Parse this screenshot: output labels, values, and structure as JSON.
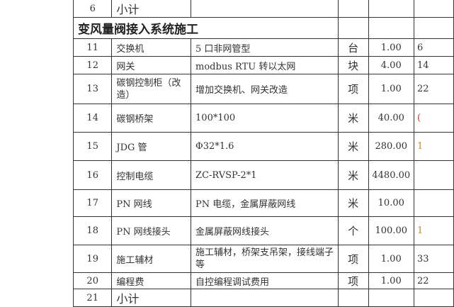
{
  "rows_top": [
    {
      "no": "6",
      "name": "小计"
    }
  ],
  "section": {
    "title": "变风量阀接入系统施工"
  },
  "rows": [
    {
      "no": "11",
      "name": "交换机",
      "spec": "5 口非网管型",
      "unit": "台",
      "qty": "1.00",
      "price": "6",
      "price_color": "#333333"
    },
    {
      "no": "12",
      "name": "网关",
      "spec": "modbus RTU 转以太网",
      "unit": "块",
      "qty": "4.00",
      "price": "14",
      "price_color": "#333333"
    },
    {
      "no": "13",
      "name": "碳钢控制柜（改造）",
      "spec": "增加交换机、网关改造",
      "unit": "项",
      "qty": "1.00",
      "price": "22",
      "price_color": "#333333"
    },
    {
      "no": "14",
      "name": "碳钢桥架",
      "spec": "100*100",
      "unit": "米",
      "qty": "40.00",
      "price": "(",
      "price_color": "#c0392b"
    },
    {
      "no": "15",
      "name": "JDG 管",
      "spec": "Φ32*1.6",
      "unit": "米",
      "qty": "280.00",
      "price": "1",
      "price_color": "#d08a1a"
    },
    {
      "no": "16",
      "name": "控制电缆",
      "spec": "ZC-RVSP-2*1",
      "unit": "米",
      "qty": "4480.00",
      "price": "",
      "price_color": "#333333"
    },
    {
      "no": "17",
      "name": "PN 网线",
      "spec": "PN 电缆，金属屏蔽网线",
      "unit": "米",
      "qty": "10.00",
      "price": "",
      "price_color": "#333333"
    },
    {
      "no": "18",
      "name": "PN 网线接头",
      "spec": "金属屏蔽网线接头",
      "unit": "个",
      "qty": "100.00",
      "price": "1",
      "price_color": "#d08a1a"
    },
    {
      "no": "19",
      "name": "施工辅材",
      "spec": "施工辅材，桥架支吊架，接线端子等",
      "unit": "项",
      "qty": "1.00",
      "price": "33",
      "price_color": "#333333"
    },
    {
      "no": "20",
      "name": "编程费",
      "spec": "自控编程调试费用",
      "unit": "项",
      "qty": "1.00",
      "price": "22",
      "price_color": "#333333"
    }
  ],
  "rows_bottom": [
    {
      "no": "21",
      "name": "小计"
    }
  ]
}
